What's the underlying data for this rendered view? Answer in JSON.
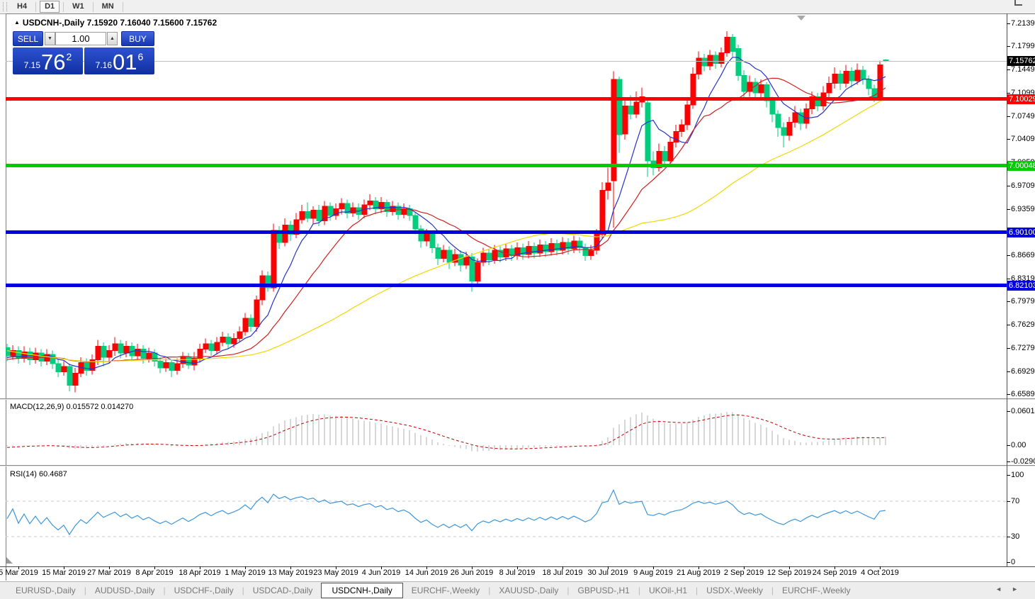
{
  "toolbar": {
    "timeframes": [
      "H4",
      "D1",
      "W1",
      "MN"
    ],
    "active_timeframe": "D1"
  },
  "chart_header": {
    "collapse_icon": "▲",
    "symbol_label": "USDCNH-,Daily",
    "ohlc_text": "7.15920 7.16040 7.15600 7.15762"
  },
  "order_panel": {
    "sell_label": "SELL",
    "buy_label": "BUY",
    "volume": "1.00",
    "spin_down_icon": "▼",
    "spin_up_icon": "▲",
    "sell_quote": {
      "small": "7.15",
      "big": "76",
      "sup": "2"
    },
    "buy_quote": {
      "small": "7.16",
      "big": "01",
      "sup": "6"
    }
  },
  "colors": {
    "bull": "#fe0000",
    "bear": "#00ce7e",
    "ma_fast": "#2233cc",
    "ma_mid": "#d02020",
    "ma_slow": "#efd902",
    "line_red": "#fe0000",
    "line_green": "#00cc00",
    "line_blue": "#0000e0",
    "price_marker_bg": "#000000",
    "price_line": "#c0c0c0",
    "macd_bar": "#b2b2b2",
    "macd_signal": "#c00000",
    "rsi_line": "#3c96dc",
    "rsi_level": "#c8c8c8"
  },
  "price_axis": {
    "range_top": 7.2277,
    "range_bottom": 6.6522,
    "ticks": [
      {
        "label": "7.21390",
        "value": 7.2139
      },
      {
        "label": "7.17990",
        "value": 7.1799
      },
      {
        "label": "7.14490",
        "value": 7.1449
      },
      {
        "label": "7.10990",
        "value": 7.1099
      },
      {
        "label": "7.07490",
        "value": 7.0749
      },
      {
        "label": "7.04090",
        "value": 7.0409
      },
      {
        "label": "7.00590",
        "value": 7.0059
      },
      {
        "label": "6.97090",
        "value": 6.9709
      },
      {
        "label": "6.93590",
        "value": 6.9359
      },
      {
        "label": "6.90090",
        "value": 6.9009
      },
      {
        "label": "6.86690",
        "value": 6.8669
      },
      {
        "label": "6.83190",
        "value": 6.8319
      },
      {
        "label": "6.79790",
        "value": 6.7979
      },
      {
        "label": "6.76290",
        "value": 6.7629
      },
      {
        "label": "6.72790",
        "value": 6.7279
      },
      {
        "label": "6.69290",
        "value": 6.6929
      },
      {
        "label": "6.65890",
        "value": 6.6589
      }
    ],
    "current_price": {
      "label": "7.15762",
      "value": 7.15762
    }
  },
  "hlines": [
    {
      "label": "7.10029",
      "value": 7.10029,
      "color_key": "line_red",
      "thickness": 5
    },
    {
      "label": "7.00048",
      "value": 7.00048,
      "color_key": "line_green",
      "thickness": 5
    },
    {
      "label": "6.90100",
      "value": 6.901,
      "color_key": "line_blue",
      "thickness": 5
    },
    {
      "label": "6.82103",
      "value": 6.82103,
      "color_key": "line_blue",
      "thickness": 5
    }
  ],
  "macd_panel": {
    "label": "MACD(12,26,9) 0.015572 0.014270",
    "axis": [
      {
        "label": "0.060146",
        "value": 0.060146
      },
      {
        "label": "0.00",
        "value": 0
      },
      {
        "label": "-0.02906",
        "value": -0.02906
      }
    ]
  },
  "rsi_panel": {
    "label": "RSI(14) 60.4687",
    "axis": [
      {
        "label": "100",
        "value": 100
      },
      {
        "label": "70",
        "value": 70
      },
      {
        "label": "30",
        "value": 30
      },
      {
        "label": "0",
        "value": 0
      }
    ],
    "levels": [
      70,
      30
    ]
  },
  "tabs": {
    "items": [
      {
        "label": "EURUSD-,Daily",
        "active": false
      },
      {
        "label": "AUDUSD-,Daily",
        "active": false
      },
      {
        "label": "USDCHF-,Daily",
        "active": false
      },
      {
        "label": "USDCAD-,Daily",
        "active": false
      },
      {
        "label": "USDCNH-,Daily",
        "active": true
      },
      {
        "label": "EURCHF-,Weekly",
        "active": false
      },
      {
        "label": "XAUUSD-,Daily",
        "active": false
      },
      {
        "label": "GBPUSD-,H1",
        "active": false
      },
      {
        "label": "UKOil-,H1",
        "active": false
      },
      {
        "label": "USDX-,Weekly",
        "active": false
      },
      {
        "label": "EURCHF-,Weekly",
        "active": false
      }
    ],
    "nav_left_icon": "◄",
    "nav_right_icon": "►"
  },
  "chart_data": {
    "type": "candlestick",
    "symbol": "USDCNH-",
    "timeframe": "Daily",
    "x_axis": {
      "labels": [
        "5 Mar 2019",
        "15 Mar 2019",
        "27 Mar 2019",
        "8 Apr 2019",
        "18 Apr 2019",
        "1 May 2019",
        "13 May 2019",
        "23 May 2019",
        "4 Jun 2019",
        "14 Jun 2019",
        "26 Jun 2019",
        "8 Jul 2019",
        "18 Jul 2019",
        "30 Jul 2019",
        "9 Aug 2019",
        "21 Aug 2019",
        "2 Sep 2019",
        "12 Sep 2019",
        "24 Sep 2019",
        "4 Oct 2019"
      ],
      "label_start_index": 2,
      "label_step": 8
    },
    "up_color_means": "close>open (red = bullish)",
    "candles": [
      [
        6.728,
        6.734,
        6.708,
        6.716
      ],
      [
        6.716,
        6.732,
        6.71,
        6.724
      ],
      [
        6.724,
        6.73,
        6.704,
        6.712
      ],
      [
        6.712,
        6.73,
        6.706,
        6.722
      ],
      [
        6.722,
        6.728,
        6.702,
        6.71
      ],
      [
        6.71,
        6.728,
        6.704,
        6.72
      ],
      [
        6.72,
        6.726,
        6.7,
        6.708
      ],
      [
        6.708,
        6.726,
        6.702,
        6.718
      ],
      [
        6.718,
        6.724,
        6.696,
        6.704
      ],
      [
        6.704,
        6.71,
        6.684,
        6.692
      ],
      [
        6.692,
        6.708,
        6.686,
        6.7
      ],
      [
        6.7,
        6.704,
        6.663,
        6.672
      ],
      [
        6.672,
        6.698,
        6.661,
        6.69
      ],
      [
        6.69,
        6.714,
        6.684,
        6.706
      ],
      [
        6.706,
        6.712,
        6.686,
        6.694
      ],
      [
        6.694,
        6.718,
        6.688,
        6.71
      ],
      [
        6.71,
        6.74,
        6.702,
        6.73
      ],
      [
        6.73,
        6.736,
        6.7,
        6.714
      ],
      [
        6.714,
        6.732,
        6.706,
        6.724
      ],
      [
        6.724,
        6.744,
        6.716,
        6.734
      ],
      [
        6.734,
        6.74,
        6.712,
        6.72
      ],
      [
        6.72,
        6.738,
        6.714,
        6.73
      ],
      [
        6.73,
        6.736,
        6.708,
        6.716
      ],
      [
        6.716,
        6.734,
        6.71,
        6.726
      ],
      [
        6.726,
        6.732,
        6.704,
        6.712
      ],
      [
        6.712,
        6.728,
        6.706,
        6.72
      ],
      [
        6.72,
        6.726,
        6.7,
        6.708
      ],
      [
        6.708,
        6.714,
        6.69,
        6.698
      ],
      [
        6.698,
        6.712,
        6.692,
        6.706
      ],
      [
        6.706,
        6.71,
        6.684,
        6.694
      ],
      [
        6.694,
        6.712,
        6.688,
        6.704
      ],
      [
        6.704,
        6.722,
        6.698,
        6.714
      ],
      [
        6.714,
        6.72,
        6.696,
        6.702
      ],
      [
        6.702,
        6.722,
        6.694,
        6.712
      ],
      [
        6.712,
        6.734,
        6.706,
        6.726
      ],
      [
        6.726,
        6.742,
        6.72,
        6.734
      ],
      [
        6.734,
        6.74,
        6.716,
        6.724
      ],
      [
        6.724,
        6.744,
        6.718,
        6.736
      ],
      [
        6.736,
        6.752,
        6.73,
        6.744
      ],
      [
        6.744,
        6.75,
        6.726,
        6.734
      ],
      [
        6.734,
        6.75,
        6.728,
        6.742
      ],
      [
        6.742,
        6.76,
        6.736,
        6.752
      ],
      [
        6.752,
        6.78,
        6.746,
        6.772
      ],
      [
        6.772,
        6.778,
        6.752,
        6.76
      ],
      [
        6.76,
        6.806,
        6.752,
        6.8
      ],
      [
        6.8,
        6.844,
        6.792,
        6.836
      ],
      [
        6.836,
        6.842,
        6.812,
        6.818
      ],
      [
        6.818,
        6.914,
        6.812,
        6.904
      ],
      [
        6.904,
        6.91,
        6.876,
        6.886
      ],
      [
        6.886,
        6.922,
        6.88,
        6.912
      ],
      [
        6.912,
        6.918,
        6.888,
        6.898
      ],
      [
        6.898,
        6.93,
        6.892,
        6.92
      ],
      [
        6.92,
        6.942,
        6.914,
        6.932
      ],
      [
        6.932,
        6.946,
        6.916,
        6.922
      ],
      [
        6.922,
        6.94,
        6.914,
        6.934
      ],
      [
        6.934,
        6.942,
        6.91,
        6.918
      ],
      [
        6.918,
        6.948,
        6.912,
        6.94
      ],
      [
        6.94,
        6.946,
        6.918,
        6.926
      ],
      [
        6.926,
        6.944,
        6.92,
        6.936
      ],
      [
        6.936,
        6.952,
        6.928,
        6.944
      ],
      [
        6.944,
        6.95,
        6.922,
        6.93
      ],
      [
        6.93,
        6.946,
        6.924,
        6.938
      ],
      [
        6.938,
        6.944,
        6.92,
        6.928
      ],
      [
        6.928,
        6.95,
        6.922,
        6.942
      ],
      [
        6.942,
        6.958,
        6.934,
        6.948
      ],
      [
        6.948,
        6.954,
        6.928,
        6.936
      ],
      [
        6.936,
        6.954,
        6.93,
        6.946
      ],
      [
        6.946,
        6.95,
        6.924,
        6.932
      ],
      [
        6.932,
        6.948,
        6.926,
        6.94
      ],
      [
        6.94,
        6.946,
        6.92,
        6.928
      ],
      [
        6.928,
        6.944,
        6.922,
        6.936
      ],
      [
        6.936,
        6.942,
        6.918,
        6.926
      ],
      [
        6.926,
        6.932,
        6.898,
        6.906
      ],
      [
        6.906,
        6.912,
        6.878,
        6.888
      ],
      [
        6.888,
        6.906,
        6.88,
        6.898
      ],
      [
        6.898,
        6.904,
        6.87,
        6.878
      ],
      [
        6.878,
        6.884,
        6.852,
        6.862
      ],
      [
        6.862,
        6.882,
        6.856,
        6.874
      ],
      [
        6.874,
        6.88,
        6.846,
        6.856
      ],
      [
        6.856,
        6.876,
        6.85,
        6.868
      ],
      [
        6.868,
        6.874,
        6.842,
        6.852
      ],
      [
        6.852,
        6.872,
        6.846,
        6.864
      ],
      [
        6.864,
        6.87,
        6.812,
        6.828
      ],
      [
        6.828,
        6.862,
        6.822,
        6.856
      ],
      [
        6.856,
        6.878,
        6.85,
        6.87
      ],
      [
        6.87,
        6.876,
        6.852,
        6.86
      ],
      [
        6.86,
        6.882,
        6.854,
        6.874
      ],
      [
        6.874,
        6.88,
        6.856,
        6.864
      ],
      [
        6.864,
        6.884,
        6.858,
        6.876
      ],
      [
        6.876,
        6.882,
        6.858,
        6.866
      ],
      [
        6.866,
        6.886,
        6.86,
        6.878
      ],
      [
        6.878,
        6.884,
        6.86,
        6.868
      ],
      [
        6.868,
        6.888,
        6.862,
        6.88
      ],
      [
        6.88,
        6.886,
        6.862,
        6.87
      ],
      [
        6.87,
        6.89,
        6.864,
        6.882
      ],
      [
        6.882,
        6.888,
        6.864,
        6.872
      ],
      [
        6.872,
        6.892,
        6.866,
        6.884
      ],
      [
        6.884,
        6.89,
        6.866,
        6.874
      ],
      [
        6.874,
        6.894,
        6.868,
        6.886
      ],
      [
        6.886,
        6.892,
        6.868,
        6.876
      ],
      [
        6.876,
        6.896,
        6.87,
        6.888
      ],
      [
        6.888,
        6.894,
        6.87,
        6.878
      ],
      [
        6.878,
        6.884,
        6.858,
        6.866
      ],
      [
        6.866,
        6.882,
        6.86,
        6.874
      ],
      [
        6.874,
        6.906,
        6.868,
        6.898
      ],
      [
        6.898,
        6.976,
        6.892,
        6.964
      ],
      [
        6.964,
        6.998,
        6.95,
        6.975
      ],
      [
        6.978,
        7.142,
        6.908,
        7.13
      ],
      [
        7.13,
        7.134,
        7.02,
        7.047
      ],
      [
        7.048,
        7.102,
        7.04,
        7.09
      ],
      [
        7.09,
        7.106,
        7.07,
        7.078
      ],
      [
        7.078,
        7.112,
        7.072,
        7.096
      ],
      [
        7.096,
        7.118,
        7.088,
        7.104
      ],
      [
        7.095,
        7.1,
        6.984,
        7.008
      ],
      [
        7.008,
        7.022,
        6.986,
        6.998
      ],
      [
        6.998,
        7.034,
        6.992,
        7.022
      ],
      [
        7.022,
        7.03,
        6.998,
        7.008
      ],
      [
        7.008,
        7.044,
        7.002,
        7.036
      ],
      [
        7.036,
        7.062,
        7.028,
        7.052
      ],
      [
        7.052,
        7.07,
        7.044,
        7.062
      ],
      [
        7.062,
        7.1,
        7.054,
        7.092
      ],
      [
        7.092,
        7.148,
        7.086,
        7.138
      ],
      [
        7.138,
        7.172,
        7.13,
        7.162
      ],
      [
        7.162,
        7.168,
        7.142,
        7.15
      ],
      [
        7.15,
        7.174,
        7.144,
        7.166
      ],
      [
        7.166,
        7.172,
        7.146,
        7.154
      ],
      [
        7.154,
        7.178,
        7.148,
        7.17
      ],
      [
        7.17,
        7.202,
        7.164,
        7.193
      ],
      [
        7.193,
        7.198,
        7.164,
        7.172
      ],
      [
        7.176,
        7.182,
        7.128,
        7.136
      ],
      [
        7.136,
        7.144,
        7.102,
        7.112
      ],
      [
        7.112,
        7.136,
        7.104,
        7.126
      ],
      [
        7.126,
        7.132,
        7.1,
        7.11
      ],
      [
        7.11,
        7.13,
        7.102,
        7.122
      ],
      [
        7.122,
        7.126,
        7.088,
        7.098
      ],
      [
        7.098,
        7.104,
        7.066,
        7.078
      ],
      [
        7.078,
        7.084,
        7.044,
        7.058
      ],
      [
        7.058,
        7.066,
        7.028,
        7.046
      ],
      [
        7.046,
        7.074,
        7.038,
        7.066
      ],
      [
        7.066,
        7.09,
        7.058,
        7.08
      ],
      [
        7.08,
        7.086,
        7.054,
        7.064
      ],
      [
        7.064,
        7.094,
        7.056,
        7.086
      ],
      [
        7.086,
        7.112,
        7.078,
        7.104
      ],
      [
        7.104,
        7.11,
        7.082,
        7.09
      ],
      [
        7.09,
        7.12,
        7.084,
        7.11
      ],
      [
        7.11,
        7.134,
        7.102,
        7.124
      ],
      [
        7.124,
        7.148,
        7.116,
        7.138
      ],
      [
        7.138,
        7.144,
        7.114,
        7.124
      ],
      [
        7.124,
        7.152,
        7.118,
        7.142
      ],
      [
        7.142,
        7.148,
        7.118,
        7.128
      ],
      [
        7.128,
        7.154,
        7.122,
        7.144
      ],
      [
        7.144,
        7.15,
        7.122,
        7.13
      ],
      [
        7.13,
        7.136,
        7.106,
        7.116
      ],
      [
        7.116,
        7.122,
        7.096,
        7.104
      ],
      [
        7.104,
        7.158,
        7.1,
        7.152
      ],
      [
        7.1592,
        7.1604,
        7.156,
        7.15762
      ]
    ],
    "indicator_warmup_closes": [
      6.8,
      6.796,
      6.79,
      6.786,
      6.78,
      6.776,
      6.77,
      6.766,
      6.76,
      6.756,
      6.75,
      6.746,
      6.74,
      6.736,
      6.73,
      6.726,
      6.722,
      6.718,
      6.714,
      6.71,
      6.708,
      6.706,
      6.704,
      6.702,
      6.7,
      6.702,
      6.704,
      6.7,
      6.698,
      6.7,
      6.702,
      6.704,
      6.706,
      6.704,
      6.702,
      6.704,
      6.706,
      6.708,
      6.71,
      6.712,
      6.71,
      6.708,
      6.71,
      6.712,
      6.714,
      6.712,
      6.71,
      6.712,
      6.714,
      6.716
    ],
    "moving_averages": [
      {
        "name": "ma-fast",
        "period": 8,
        "color_key": "ma_fast"
      },
      {
        "name": "ma-mid",
        "period": 17,
        "color_key": "ma_mid"
      },
      {
        "name": "ma-slow",
        "period": 50,
        "color_key": "ma_slow"
      }
    ],
    "macd": {
      "fast": 12,
      "slow": 26,
      "signal": 9,
      "display_main": "0.015572",
      "display_signal": "0.014270"
    },
    "rsi": {
      "period": 14,
      "display": "60.4687"
    }
  }
}
